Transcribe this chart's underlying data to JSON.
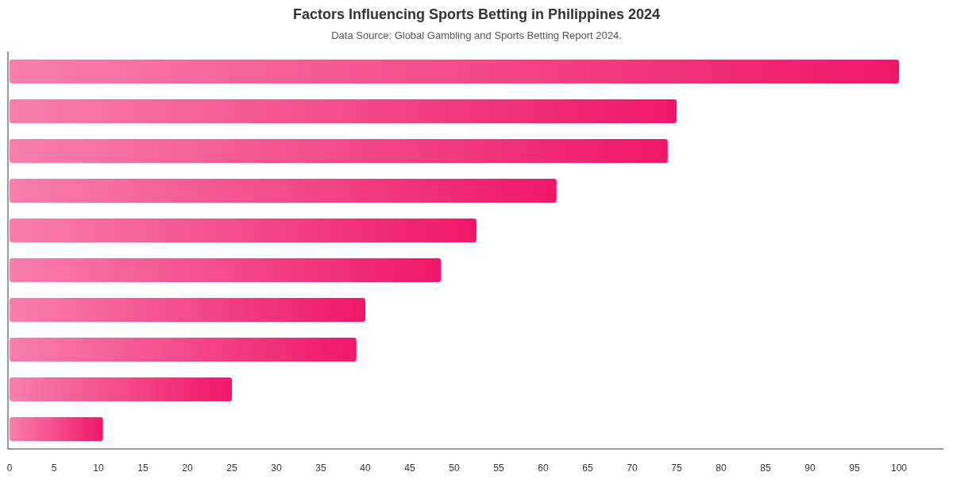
{
  "chart_data": {
    "type": "bar",
    "orientation": "horizontal",
    "title": "Factors Influencing Sports Betting in Philippines 2024",
    "subtitle": "Data Source: Global Gambling and Sports Betting Report 2024.",
    "categories": [
      null,
      null,
      null,
      null,
      null,
      null,
      null,
      null,
      null,
      null
    ],
    "values": [
      100,
      75,
      74,
      61.5,
      52.5,
      48.5,
      40,
      39,
      25,
      10.5
    ],
    "color": "#f0176a",
    "xlim": [
      0,
      105
    ],
    "xticks": [
      0,
      5,
      10,
      15,
      20,
      25,
      30,
      35,
      40,
      45,
      50,
      55,
      60,
      65,
      70,
      75,
      80,
      85,
      90,
      95,
      100
    ],
    "grid": false
  }
}
